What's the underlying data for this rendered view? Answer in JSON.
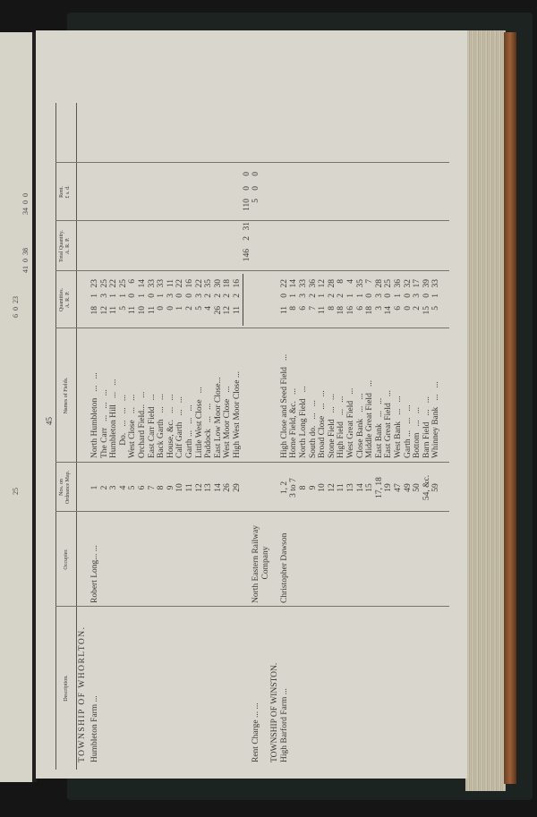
{
  "page_number": "45",
  "headers": {
    "description": "Description.",
    "occupier": "Occupier.",
    "ordnance": [
      "Nos. on",
      "Ordnance Map."
    ],
    "names": "Names of Fields.",
    "quantities": [
      "Quantities.",
      "A.   R.   P."
    ],
    "total_quantity": [
      "Total Quantity.",
      "A.   R.   P."
    ],
    "rent": [
      "Rent.",
      "£   s.   d."
    ]
  },
  "whorlton": {
    "title": "TOWNSHIP  OF  WHORLTON.",
    "description": "Humbleton Farm   ...",
    "occupier": "Robert Long...   ...",
    "rows": [
      {
        "no": "1",
        "name": "North Humbleton   ...   ...",
        "q": [
          "18",
          "1",
          "23"
        ]
      },
      {
        "no": "2",
        "name": "The Carr   ...   ...   ...",
        "q": [
          "12",
          "3",
          "25"
        ]
      },
      {
        "no": "3",
        "name": "Humbleton Hill   ...   ...",
        "q": [
          "11",
          "1",
          "22"
        ]
      },
      {
        "no": "4",
        "name": "      Do.   ...   ...   ...",
        "q": [
          "5",
          "1",
          "25"
        ]
      },
      {
        "no": "5",
        "name": "West Close   ...   ...",
        "q": [
          "11",
          "0",
          "6"
        ]
      },
      {
        "no": "6",
        "name": "Orchard Field...   ...",
        "q": [
          "10",
          "1",
          "14"
        ]
      },
      {
        "no": "7",
        "name": "East Carr Field   ...",
        "q": [
          "11",
          "0",
          "33"
        ]
      },
      {
        "no": "8",
        "name": "Back Garth   ...   ...",
        "q": [
          "0",
          "1",
          "33"
        ]
      },
      {
        "no": "9",
        "name": "House, &c.   ...   ...",
        "q": [
          "0",
          "3",
          "11"
        ]
      },
      {
        "no": "10",
        "name": "Calf Garth   ...   ...",
        "q": [
          "1",
          "0",
          "22"
        ]
      },
      {
        "no": "11",
        "name": "Garth ...   ...   ...",
        "q": [
          "2",
          "0",
          "16"
        ]
      },
      {
        "no": "12",
        "name": "Little West Close   ...",
        "q": [
          "5",
          "3",
          "22"
        ]
      },
      {
        "no": "13",
        "name": "Paddock   ...   ...",
        "q": [
          "4",
          "2",
          "35"
        ]
      },
      {
        "no": "14",
        "name": "East Low Moor Close...",
        "q": [
          "26",
          "2",
          "30"
        ]
      },
      {
        "no": "26",
        "name": "West Moor Close   ...",
        "q": [
          "12",
          "2",
          "18"
        ]
      },
      {
        "no": "29",
        "name": "High West Moor Close ...",
        "q": [
          "11",
          "2",
          "16"
        ]
      }
    ],
    "total_quantity": [
      "146",
      "2",
      "31"
    ],
    "rent": [
      "110",
      "0",
      "0"
    ]
  },
  "rent_charge": {
    "description": "Rent Charge ...   ...",
    "occupier": [
      "North Eastern Railway",
      "Company"
    ],
    "rent": [
      "5",
      "0",
      "0"
    ]
  },
  "winston": {
    "title": "TOWNSHIP OF WINSTON.",
    "description": "High Barford Farm ...",
    "occupier": "Christopher Dawson",
    "rows": [
      {
        "no": "1, 2",
        "name": "High Close and Seed Field   ...",
        "q": [
          "11",
          "0",
          "22"
        ]
      },
      {
        "no": "3 to 7",
        "name": "Home Field, &c.   ...",
        "q": [
          "8",
          "1",
          "14"
        ]
      },
      {
        "no": "8",
        "name": "North Long Field   ...",
        "q": [
          "6",
          "3",
          "33"
        ]
      },
      {
        "no": "9",
        "name": "South do.   ...   ...",
        "q": [
          "7",
          "2",
          "36"
        ]
      },
      {
        "no": "10",
        "name": "Broad Close   ...   ...",
        "q": [
          "11",
          "1",
          "12"
        ]
      },
      {
        "no": "12",
        "name": "Stone Field   ...   ...",
        "q": [
          "8",
          "2",
          "28"
        ]
      },
      {
        "no": "11",
        "name": "High Field   ...   ...",
        "q": [
          "18",
          "2",
          "8"
        ]
      },
      {
        "no": "13",
        "name": "West Great Field   ...",
        "q": [
          "16",
          "1",
          "4"
        ]
      },
      {
        "no": "14",
        "name": "Close Bank   ...   ...",
        "q": [
          "6",
          "1",
          "35"
        ]
      },
      {
        "no": "15",
        "name": "Middle Great Field   ...",
        "q": [
          "18",
          "0",
          "7"
        ]
      },
      {
        "no": "17, 18",
        "name": "East Bank   ...   ...",
        "q": [
          "3",
          "3",
          "28"
        ]
      },
      {
        "no": "19",
        "name": "East Great Field   ...",
        "q": [
          "14",
          "0",
          "25"
        ]
      },
      {
        "no": "47",
        "name": "West Bank   ...   ...",
        "q": [
          "6",
          "1",
          "36"
        ]
      },
      {
        "no": "49",
        "name": "Garth ...   ...   ...",
        "q": [
          "0",
          "0",
          "32"
        ]
      },
      {
        "no": "50",
        "name": "Bottom   ...   ...",
        "q": [
          "2",
          "3",
          "17"
        ]
      },
      {
        "no": "54, &c.",
        "name": "Barn Field   ...   ...",
        "q": [
          "15",
          "0",
          "39"
        ]
      },
      {
        "no": "59",
        "name": "Whinney Bank   ...   ...",
        "q": [
          "5",
          "1",
          "33"
        ]
      }
    ]
  },
  "left_page": {
    "rent": [
      "34",
      "0",
      "0"
    ],
    "total_quantity": [
      "41",
      "0",
      "38"
    ],
    "quantity": [
      "6",
      "0",
      "23"
    ],
    "nos": "25"
  }
}
